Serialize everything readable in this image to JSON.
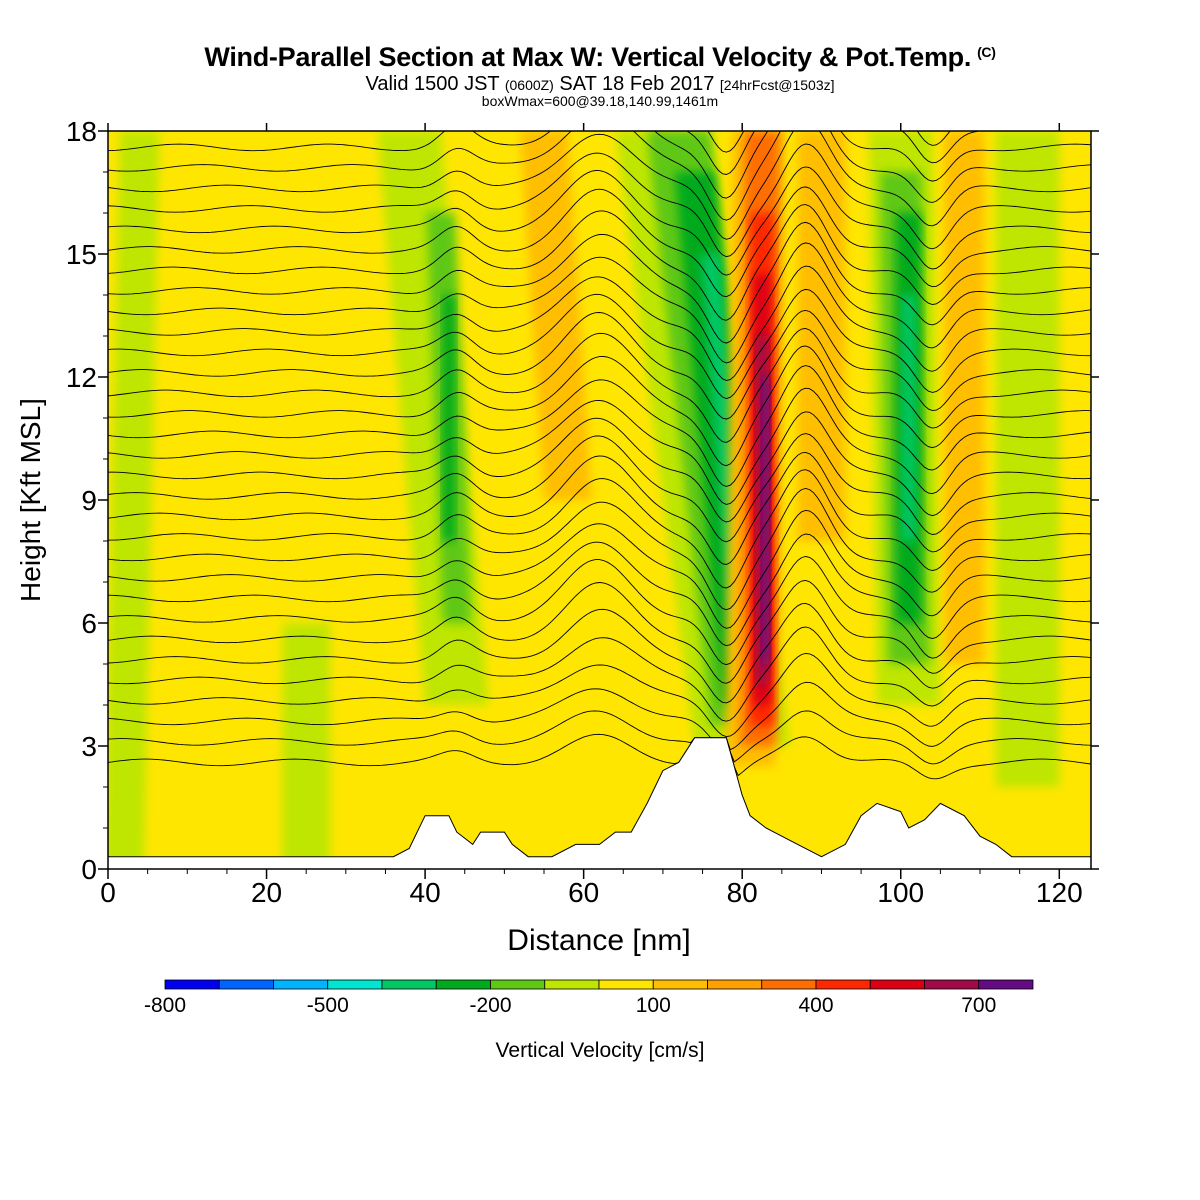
{
  "title": {
    "main": "Wind-Parallel Section at Max W: Vertical Velocity & Pot.Temp.",
    "copyright": "(C)",
    "valid_a": "Valid 1500 JST",
    "valid_utc": "(0600Z)",
    "valid_b": "SAT 18 Feb 2017",
    "forecast": "[24hrFcst@1503z]",
    "box": "boxWmax=600@39.18,140.99,1461m"
  },
  "chart_data": {
    "type": "heatmap",
    "xlabel": "Distance [nm]",
    "ylabel": "Height [Kft MSL]",
    "xlim": [
      0,
      124
    ],
    "ylim": [
      0,
      18
    ],
    "x_ticks": [
      0,
      20,
      40,
      60,
      80,
      100,
      120
    ],
    "y_ticks": [
      0,
      3,
      6,
      9,
      12,
      15,
      18
    ],
    "colorbar": {
      "label": "Vertical Velocity [cm/s]",
      "ticks": [
        -800,
        -500,
        -200,
        100,
        400,
        700
      ],
      "levels": [
        -800,
        -700,
        -600,
        -500,
        -400,
        -300,
        -200,
        -100,
        0,
        100,
        200,
        300,
        400,
        500,
        600,
        700,
        800
      ],
      "colors": [
        "#0000f0",
        "#0064ff",
        "#00b4ff",
        "#00e6d0",
        "#00c864",
        "#00aa1e",
        "#5fc814",
        "#bee600",
        "#ffe600",
        "#ffbe00",
        "#ffa000",
        "#ff6e00",
        "#ff2800",
        "#dc0014",
        "#a00a46",
        "#640a82"
      ]
    },
    "background_velocity": 50,
    "velocity_bands": [
      {
        "x_top": 4,
        "x_bottom": 2,
        "half_width": 2.5,
        "y_top": 18,
        "y_bottom": 0,
        "value": -50
      },
      {
        "x_top": 38,
        "x_bottom": 44,
        "half_width": 4,
        "y_top": 18,
        "y_bottom": 4,
        "value": -50
      },
      {
        "x_top": 42,
        "x_bottom": 44,
        "half_width": 1.8,
        "y_top": 16,
        "y_bottom": 6,
        "value": -150
      },
      {
        "x_top": 43,
        "x_bottom": 43,
        "half_width": 0.8,
        "y_top": 14,
        "y_bottom": 8,
        "value": -250
      },
      {
        "x_top": 55,
        "x_bottom": 58,
        "half_width": 3,
        "y_top": 18,
        "y_bottom": 9,
        "value": 150
      },
      {
        "x_top": 70,
        "x_bottom": 80,
        "half_width": 6,
        "y_top": 18,
        "y_bottom": 3,
        "value": -50
      },
      {
        "x_top": 72,
        "x_bottom": 80,
        "half_width": 4,
        "y_top": 18,
        "y_bottom": 3.5,
        "value": -150
      },
      {
        "x_top": 74,
        "x_bottom": 80,
        "half_width": 2.5,
        "y_top": 17,
        "y_bottom": 4,
        "value": -250
      },
      {
        "x_top": 76,
        "x_bottom": 80,
        "half_width": 1.2,
        "y_top": 15,
        "y_bottom": 5,
        "value": -350
      },
      {
        "x_top": 82,
        "x_bottom": 81,
        "half_width": 3.2,
        "y_top": 18,
        "y_bottom": 2.5,
        "value": 150
      },
      {
        "x_top": 82.5,
        "x_bottom": 82,
        "half_width": 2.2,
        "y_top": 18,
        "y_bottom": 3,
        "value": 350
      },
      {
        "x_top": 82.5,
        "x_bottom": 82.5,
        "half_width": 1.5,
        "y_top": 16,
        "y_bottom": 3.5,
        "value": 450
      },
      {
        "x_top": 82.5,
        "x_bottom": 82.5,
        "half_width": 1.1,
        "y_top": 14.5,
        "y_bottom": 4,
        "value": 550
      },
      {
        "x_top": 82.5,
        "x_bottom": 82.5,
        "half_width": 0.8,
        "y_top": 13,
        "y_bottom": 4.5,
        "value": 650
      },
      {
        "x_top": 83,
        "x_bottom": 83,
        "half_width": 0.5,
        "y_top": 12,
        "y_bottom": 5,
        "value": 750
      },
      {
        "x_top": 90,
        "x_bottom": 90,
        "half_width": 3,
        "y_top": 18,
        "y_bottom": 8,
        "value": 150
      },
      {
        "x_top": 100,
        "x_bottom": 101,
        "half_width": 4,
        "y_top": 18,
        "y_bottom": 4,
        "value": -50
      },
      {
        "x_top": 100,
        "x_bottom": 101,
        "half_width": 2.6,
        "y_top": 17,
        "y_bottom": 5,
        "value": -150
      },
      {
        "x_top": 101,
        "x_bottom": 101,
        "half_width": 1.6,
        "y_top": 16,
        "y_bottom": 6,
        "value": -250
      },
      {
        "x_top": 101,
        "x_bottom": 101,
        "half_width": 0.9,
        "y_top": 14,
        "y_bottom": 8,
        "value": -350
      },
      {
        "x_top": 108,
        "x_bottom": 108,
        "half_width": 2.5,
        "y_top": 18,
        "y_bottom": 5,
        "value": 150
      },
      {
        "x_top": 116,
        "x_bottom": 116,
        "half_width": 4,
        "y_top": 18,
        "y_bottom": 2,
        "value": -50
      },
      {
        "x_top": 25,
        "x_bottom": 25,
        "half_width": 3,
        "y_top": 6,
        "y_bottom": 0,
        "value": -50
      }
    ],
    "isentrope_levels": [
      0,
      1,
      2,
      3,
      4,
      5,
      6,
      7,
      8,
      9,
      10,
      11,
      12,
      13,
      14,
      15,
      16,
      17,
      18,
      19,
      20,
      21,
      22,
      23,
      24,
      25,
      26,
      27,
      28,
      29,
      30,
      31,
      32
    ],
    "terrain": [
      [
        0,
        0.3
      ],
      [
        36,
        0.3
      ],
      [
        38,
        0.5
      ],
      [
        40,
        1.3
      ],
      [
        43,
        1.3
      ],
      [
        44,
        0.9
      ],
      [
        46,
        0.6
      ],
      [
        47,
        0.9
      ],
      [
        50,
        0.9
      ],
      [
        51,
        0.6
      ],
      [
        53,
        0.3
      ],
      [
        56,
        0.3
      ],
      [
        59,
        0.6
      ],
      [
        62,
        0.6
      ],
      [
        64,
        0.9
      ],
      [
        66,
        0.9
      ],
      [
        68,
        1.6
      ],
      [
        70,
        2.4
      ],
      [
        72,
        2.6
      ],
      [
        74,
        3.2
      ],
      [
        78,
        3.2
      ],
      [
        79,
        2.5
      ],
      [
        80,
        1.8
      ],
      [
        81,
        1.3
      ],
      [
        83,
        1.0
      ],
      [
        85,
        0.8
      ],
      [
        87,
        0.6
      ],
      [
        90,
        0.3
      ],
      [
        93,
        0.6
      ],
      [
        95,
        1.3
      ],
      [
        97,
        1.6
      ],
      [
        100,
        1.4
      ],
      [
        101,
        1.0
      ],
      [
        103,
        1.2
      ],
      [
        105,
        1.6
      ],
      [
        108,
        1.3
      ],
      [
        110,
        0.8
      ],
      [
        112,
        0.6
      ],
      [
        114,
        0.3
      ],
      [
        124,
        0.3
      ]
    ]
  }
}
